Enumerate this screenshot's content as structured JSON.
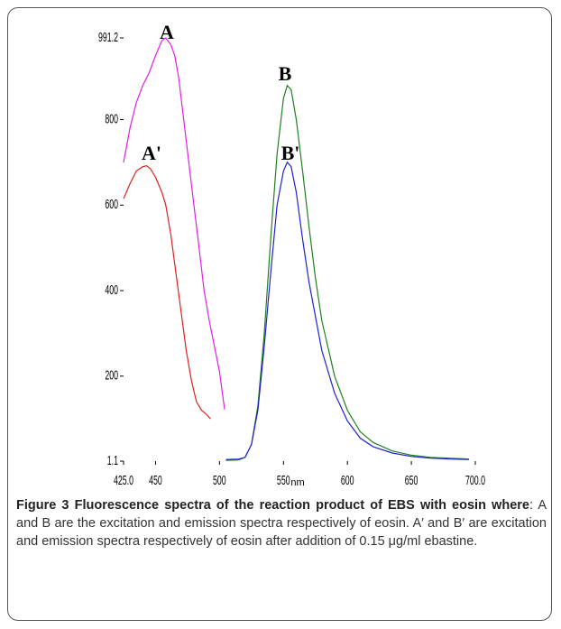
{
  "chart_data": {
    "type": "line",
    "xlabel": "nm",
    "xlim": [
      425,
      700
    ],
    "xticks": [
      {
        "value": 425,
        "label": "425.0"
      },
      450,
      500,
      550,
      600,
      650,
      {
        "value": 700,
        "label": "700.0"
      }
    ],
    "ylim": [
      1.1,
      991.2
    ],
    "yticks": [
      1.1,
      200,
      400,
      600,
      800,
      991.2
    ],
    "annotations": [
      "A",
      "A'",
      "B",
      "B'"
    ],
    "series": [
      {
        "color": "#e020e0",
        "x": [
          425,
          430,
          435,
          440,
          445,
          450,
          455,
          458,
          462,
          465,
          468,
          472,
          476,
          480,
          484,
          488,
          492,
          496,
          500,
          504
        ],
        "values": [
          700,
          780,
          840,
          880,
          910,
          950,
          985,
          991,
          975,
          950,
          900,
          800,
          700,
          600,
          500,
          400,
          330,
          270,
          210,
          122
        ]
      },
      {
        "color": "#e02020",
        "x": [
          425,
          430,
          435,
          440,
          443,
          446,
          450,
          455,
          458,
          462,
          466,
          470,
          474,
          478,
          482,
          486,
          490,
          493
        ],
        "values": [
          615,
          650,
          680,
          690,
          692,
          685,
          665,
          630,
          600,
          530,
          440,
          350,
          260,
          190,
          140,
          120,
          110,
          100
        ]
      },
      {
        "color": "#208020",
        "x": [
          505,
          515,
          520,
          525,
          530,
          535,
          540,
          545,
          550,
          553,
          556,
          560,
          565,
          570,
          575,
          580,
          590,
          600,
          610,
          620,
          635,
          650,
          665,
          680,
          695
        ],
        "values": [
          3,
          4,
          10,
          40,
          130,
          300,
          520,
          720,
          850,
          880,
          870,
          800,
          680,
          550,
          430,
          330,
          200,
          120,
          70,
          45,
          25,
          15,
          10,
          8,
          6
        ]
      },
      {
        "color": "#2020d0",
        "x": [
          505,
          515,
          520,
          525,
          530,
          535,
          540,
          545,
          550,
          553,
          556,
          560,
          565,
          570,
          575,
          580,
          590,
          600,
          610,
          620,
          635,
          650,
          665,
          680,
          695
        ],
        "values": [
          5,
          6,
          10,
          40,
          120,
          270,
          440,
          600,
          680,
          700,
          690,
          630,
          520,
          420,
          340,
          260,
          160,
          95,
          55,
          35,
          20,
          12,
          8,
          6,
          5
        ]
      }
    ]
  },
  "caption": {
    "bold": "Figure 3 Fluorescence spectra of the reaction product of EBS with eosin where",
    "text": ": A and B are the excitation and emission spectra respectively of eosin. A′ and B′ are excitation and emission spectra respectively of eosin after addition of 0.15 μg/ml ebastine."
  }
}
